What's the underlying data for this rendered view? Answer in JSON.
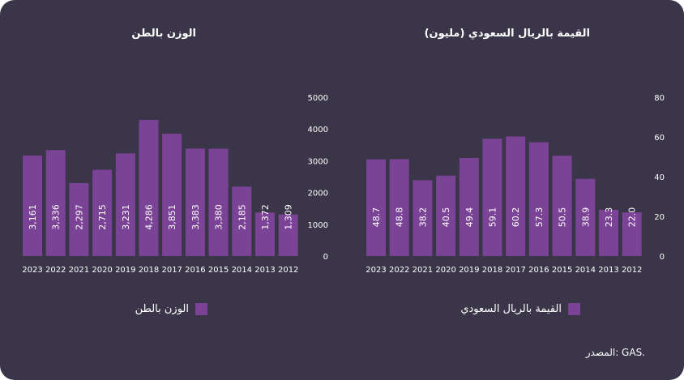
{
  "source_text": "المصدر: GAS.",
  "colors": {
    "background": "#3a3548",
    "bar": "#7b4396",
    "text": "#ffffff"
  },
  "chart_data": [
    {
      "type": "bar",
      "title": "القيمة بالريال السعودي (مليون)",
      "legend": "القيمة بالريال السعودي",
      "categories": [
        "2023",
        "2022",
        "2021",
        "2020",
        "2019",
        "2018",
        "2017",
        "2016",
        "2015",
        "2014",
        "2013",
        "2012"
      ],
      "values": [
        48.7,
        48.8,
        38.2,
        40.5,
        49.4,
        59.1,
        60.2,
        57.3,
        50.5,
        38.9,
        23.3,
        22.0
      ],
      "value_labels": [
        "48.7",
        "48.8",
        "38.2",
        "40.5",
        "49.4",
        "59.1",
        "60.2",
        "57.3",
        "50.5",
        "38.9",
        "23.3",
        "22.0"
      ],
      "ylim": [
        0,
        80
      ],
      "yticks": [
        "0",
        "20",
        "40",
        "60",
        "80"
      ],
      "yaxis_position": "right",
      "grid": false,
      "legend_placement": "bottom"
    },
    {
      "type": "bar",
      "title": "الوزن بالطن",
      "legend": "الوزن بالطن",
      "categories": [
        "2023",
        "2022",
        "2021",
        "2020",
        "2019",
        "2018",
        "2017",
        "2016",
        "2015",
        "2014",
        "2013",
        "2012"
      ],
      "values": [
        3161,
        3336,
        2297,
        2715,
        3231,
        4286,
        3851,
        3383,
        3380,
        2185,
        1372,
        1309
      ],
      "value_labels": [
        "3,161",
        "3,336",
        "2,297",
        "2,715",
        "3,231",
        "4,286",
        "3,851",
        "3,383",
        "3,380",
        "2,185",
        "1,372",
        "1,309"
      ],
      "ylim": [
        0,
        5000
      ],
      "yticks": [
        "0",
        "1000",
        "2000",
        "3000",
        "4000",
        "5000"
      ],
      "yaxis_position": "right",
      "grid": false,
      "legend_placement": "bottom"
    }
  ]
}
